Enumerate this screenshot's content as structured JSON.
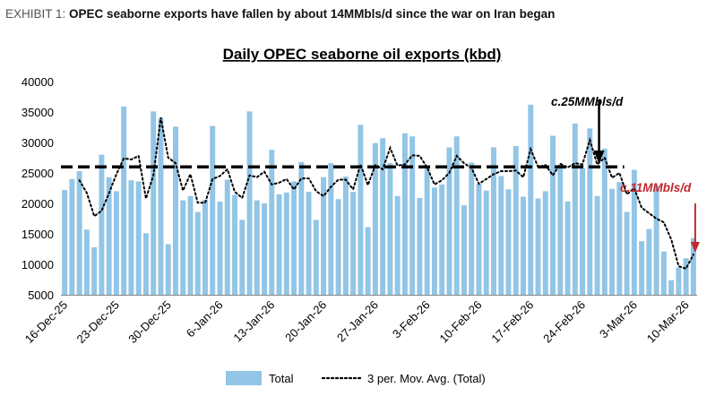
{
  "exhibit": {
    "prefix": "EXHIBIT 1:",
    "text": "OPEC seaborne exports have fallen by about 14MMbls/d since the war on Iran began"
  },
  "colors": {
    "bar": "#92c5e6",
    "moving_avg": "#000000",
    "threshold": "#000000",
    "annotation_black": "#000000",
    "annotation_red": "#c0282d"
  },
  "annotations": {
    "high_label": "c.25MMbls/d",
    "low_label": "c.11MMbls/d"
  },
  "chart_data": {
    "type": "bar",
    "title": "Daily OPEC seaborne oil exports (kbd)",
    "xlabel": "",
    "ylabel": "",
    "ylim": [
      5000,
      40000
    ],
    "yticks": [
      5000,
      10000,
      15000,
      20000,
      25000,
      30000,
      35000,
      40000
    ],
    "grid": false,
    "legend_position": "bottom",
    "x_tick_labels": [
      "16-Dec-25",
      "23-Dec-25",
      "30-Dec-25",
      "6-Jan-26",
      "13-Jan-26",
      "20-Jan-26",
      "27-Jan-26",
      "3-Feb-26",
      "10-Feb-26",
      "17-Feb-26",
      "24-Feb-26",
      "3-Mar-26",
      "10-Mar-26"
    ],
    "x_tick_every": 7,
    "reference_line": {
      "value": 26000
    },
    "series": [
      {
        "name": "Total",
        "type": "bar",
        "values": [
          22200,
          24000,
          25300,
          15700,
          12800,
          28000,
          24300,
          22000,
          35900,
          23800,
          23600,
          15100,
          35100,
          34000,
          13300,
          32600,
          20500,
          21200,
          18600,
          20600,
          32700,
          20300,
          23900,
          21400,
          17300,
          35100,
          20500,
          20000,
          28800,
          21500,
          21800,
          23600,
          26800,
          21900,
          17300,
          24300,
          26600,
          20700,
          24400,
          21900,
          32900,
          16100,
          29900,
          30700,
          26600,
          21200,
          31500,
          31000,
          20900,
          25700,
          22600,
          23100,
          29200,
          31000,
          19700,
          26700,
          23200,
          22100,
          29200,
          24500,
          22300,
          29400,
          21100,
          36200,
          20800,
          22000,
          31100,
          26300,
          20300,
          33100,
          25800,
          32300,
          21200,
          29000,
          22400,
          23500,
          18600,
          25500,
          13800,
          15800,
          22900,
          12100,
          7400,
          9500,
          11000,
          14300
        ]
      },
      {
        "name": "3 per. Mov. Avg. (Total)",
        "type": "line",
        "values": [
          null,
          null,
          23800,
          21700,
          17900,
          18800,
          21700,
          24800,
          27400,
          27200,
          27800,
          20800,
          24600,
          34100,
          27500,
          26600,
          22100,
          24800,
          20100,
          20100,
          24000,
          24500,
          25600,
          21900,
          20900,
          24600,
          24300,
          25200,
          23100,
          23400,
          24000,
          22300,
          24100,
          24100,
          22000,
          21200,
          22700,
          23900,
          23900,
          22300,
          26400,
          23000,
          26300,
          25600,
          29100,
          26200,
          26400,
          27900,
          27800,
          25900,
          23100,
          23800,
          25000,
          27800,
          26600,
          25800,
          23200,
          24000,
          24800,
          25300,
          25300,
          25400,
          24300,
          28900,
          26000,
          26300,
          24600,
          26500,
          25900,
          26600,
          26400,
          30400,
          26400,
          27500,
          24200,
          25000,
          21500,
          22500,
          19300,
          18400,
          17500,
          16900,
          14100,
          9700,
          9300,
          11600
        ]
      }
    ]
  }
}
